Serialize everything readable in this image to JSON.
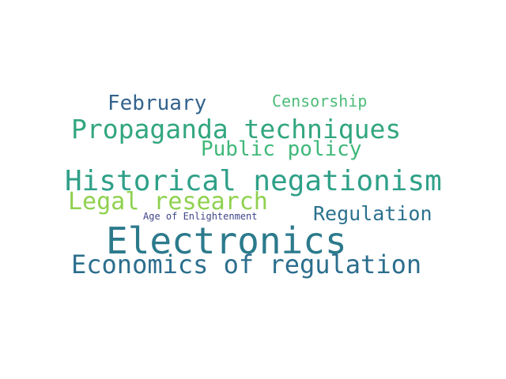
{
  "words": {
    "electronics": {
      "text": "Electronics",
      "color": "#2b7a8c"
    },
    "historical_negationism": {
      "text": "Historical negationism",
      "color": "#2fa088"
    },
    "propaganda_techniques": {
      "text": "Propaganda techniques",
      "color": "#32a67f"
    },
    "economics_of_regulation": {
      "text": "Economics of regulation",
      "color": "#2c6e8e"
    },
    "legal_research": {
      "text": "Legal research",
      "color": "#8fd14f"
    },
    "public_policy": {
      "text": "Public policy",
      "color": "#3fb879"
    },
    "february": {
      "text": "February",
      "color": "#33638d"
    },
    "regulation": {
      "text": "Regulation",
      "color": "#2b728e"
    },
    "censorship": {
      "text": "Censorship",
      "color": "#4cbc78"
    },
    "age_of_enlightenment": {
      "text": "Age of Enlightenment",
      "color": "#404688"
    }
  }
}
